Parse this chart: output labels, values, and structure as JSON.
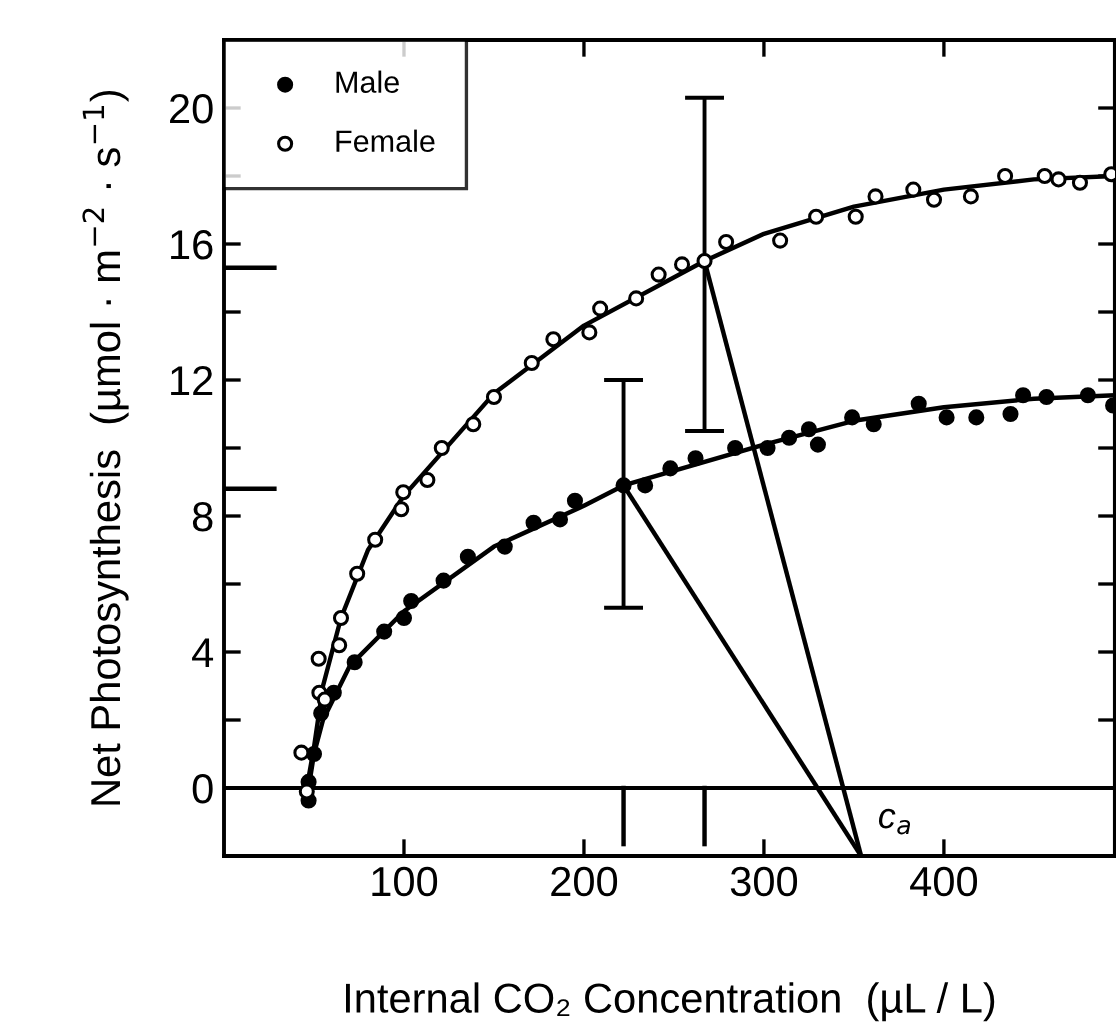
{
  "chart_data": {
    "type": "scatter",
    "xlabel": "Internal CO₂ Concentration  (µL / L)",
    "ylabel": "Net Photosynthesis  (µmol · m$^{−2}$ · s$^{−1}$)",
    "xlim": [
      0,
      495
    ],
    "ylim": [
      -2,
      22
    ],
    "xticks": [
      100,
      200,
      300,
      400
    ],
    "yticks": [
      0,
      {
        "value": 2,
        "label": null
      },
      4,
      {
        "value": 6,
        "label": null
      },
      8,
      {
        "value": 10,
        "label": null
      },
      12,
      {
        "value": 14,
        "label": null
      },
      16,
      {
        "value": 18,
        "label": null
      },
      20
    ],
    "grid": false,
    "legend": "top left",
    "ref_lines": [
      {
        "axis": "y",
        "value": 0,
        "color": "#000000"
      }
    ],
    "annotations": [
      {
        "text": "c$_{a}$",
        "x": 354,
        "y": -2
      }
    ],
    "series": [
      {
        "name": "Male",
        "marker": "circle",
        "color": "#000000",
        "errors": [
          null,
          null,
          null,
          null,
          null,
          null,
          null,
          null,
          null,
          null,
          null,
          null,
          null,
          null,
          null,
          [
            5.3,
            12.0
          ],
          null,
          null,
          null,
          null,
          null,
          null,
          null,
          null,
          null,
          null,
          null,
          null,
          null,
          null,
          null,
          null,
          null,
          null
        ],
        "x": [
          47,
          47,
          50,
          54,
          61,
          72.6,
          89,
          100,
          104,
          122,
          135.5,
          156,
          172,
          186.7,
          195,
          222,
          234,
          248,
          262,
          284,
          302,
          314,
          325,
          330,
          349,
          361,
          386,
          401.5,
          418,
          437,
          444,
          457,
          480,
          494
        ],
        "values": [
          -0.37,
          0.18,
          1.0,
          2.2,
          2.8,
          3.7,
          4.6,
          5.0,
          5.5,
          6.1,
          6.8,
          7.1,
          7.8,
          7.9,
          8.45,
          8.9,
          8.9,
          9.4,
          9.7,
          10.0,
          10.0,
          10.3,
          10.55,
          10.1,
          10.9,
          10.7,
          11.3,
          10.9,
          10.9,
          11.0,
          11.55,
          11.5,
          11.55,
          11.25
        ]
      },
      {
        "name": "Female",
        "marker": "circle",
        "color": "#ffffff",
        "errors": [
          null,
          null,
          null,
          null,
          null,
          null,
          null,
          null,
          null,
          null,
          null,
          null,
          null,
          null,
          null,
          null,
          null,
          null,
          null,
          null,
          null,
          null,
          [
            10.5,
            20.3
          ],
          null,
          null,
          null,
          null,
          null,
          null,
          null,
          null,
          null,
          null,
          null,
          null,
          null
        ],
        "x": [
          43,
          46,
          52.6,
          53,
          56,
          64,
          65,
          74,
          84,
          98.5,
          99.6,
          113,
          121,
          138.5,
          150,
          171,
          183,
          203,
          209,
          229,
          241.5,
          254.5,
          267,
          279,
          309,
          329,
          351,
          362,
          383,
          394.5,
          415,
          434,
          456,
          463.7,
          475.6,
          493
        ],
        "values": [
          1.04,
          -0.1,
          3.8,
          2.8,
          2.6,
          4.2,
          5.0,
          6.3,
          7.3,
          8.2,
          8.7,
          9.06,
          10.0,
          10.7,
          11.5,
          12.5,
          13.2,
          13.4,
          14.1,
          14.4,
          15.1,
          15.4,
          15.5,
          16.06,
          16.1,
          16.8,
          16.8,
          17.4,
          17.6,
          17.3,
          17.4,
          18.0,
          18.0,
          17.9,
          17.8,
          18.05
        ]
      },
      {
        "type": "line",
        "color": "#000000",
        "x": [
          47,
          50,
          55,
          70,
          100,
          150,
          200,
          222,
          300,
          350,
          400,
          450,
          495
        ],
        "values": [
          0,
          1.0,
          2.0,
          3.6,
          5.2,
          7.1,
          8.3,
          8.9,
          10.1,
          10.8,
          11.2,
          11.45,
          11.55
        ]
      },
      {
        "type": "line",
        "color": "#000000",
        "x": [
          46,
          50,
          55,
          65,
          80,
          100,
          150,
          200,
          267,
          300,
          350,
          400,
          450,
          495
        ],
        "values": [
          0,
          1.2,
          3.0,
          5.0,
          7.0,
          8.6,
          11.6,
          13.6,
          15.5,
          16.3,
          17.1,
          17.6,
          17.9,
          18.0
        ]
      },
      {
        "type": "line",
        "color": "#000000",
        "x": [
          222,
          354
        ],
        "values": [
          8.9,
          -2
        ]
      },
      {
        "type": "line",
        "color": "#000000",
        "x": [
          267,
          354
        ],
        "values": [
          15.5,
          -2
        ]
      },
      {
        "type": "line",
        "color": "#000000",
        "x": [
          0,
          28
        ],
        "values": [
          8.8,
          8.8
        ]
      },
      {
        "type": "line",
        "color": "#000000",
        "x": [
          0,
          28
        ],
        "values": [
          15.3,
          15.3
        ]
      },
      {
        "type": "line",
        "color": "#000000",
        "x": [
          222,
          222
        ],
        "values": [
          0,
          -1.65
        ]
      },
      {
        "type": "line",
        "color": "#000000",
        "x": [
          267,
          267
        ],
        "values": [
          0,
          -1.65
        ]
      }
    ]
  }
}
